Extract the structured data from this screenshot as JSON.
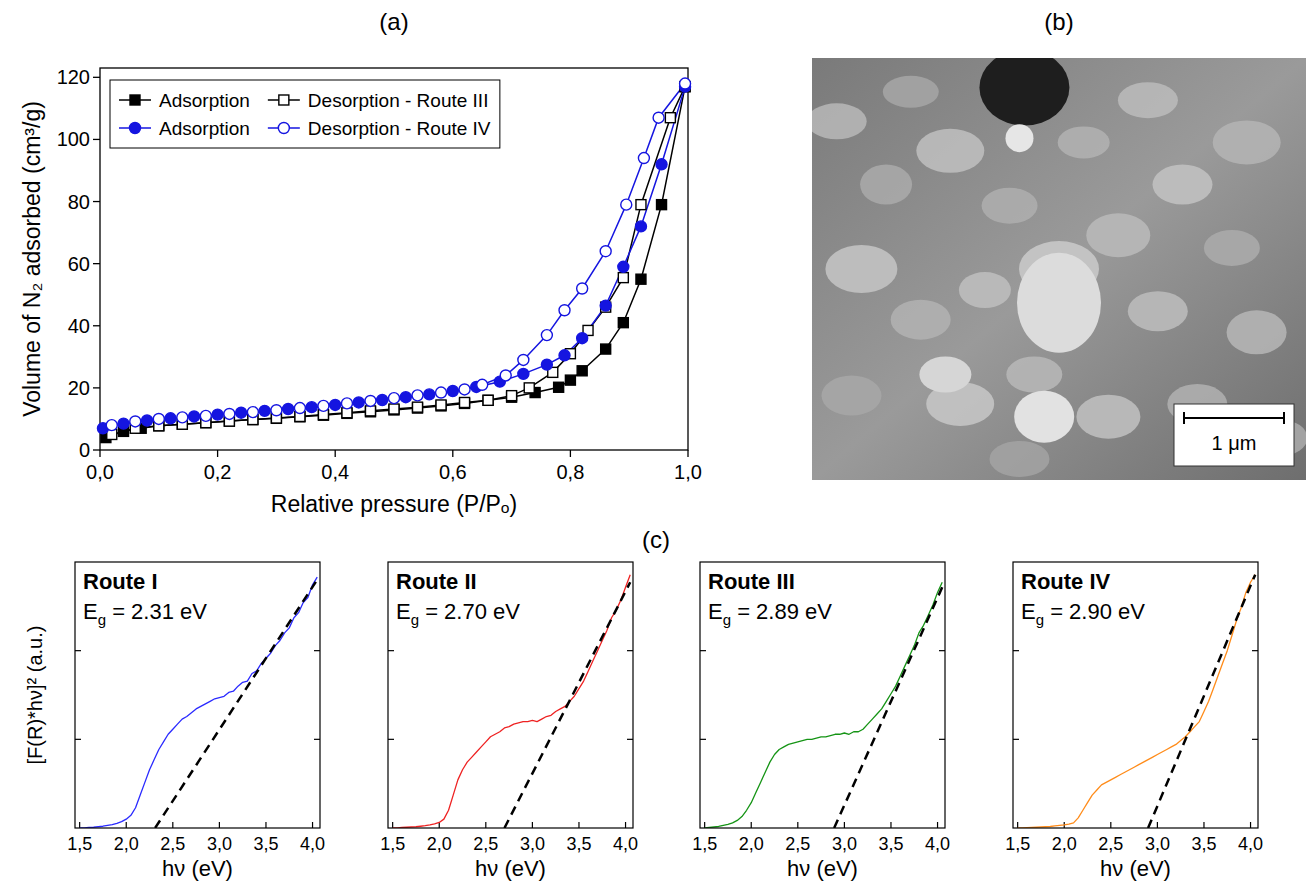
{
  "chart_data": [
    {
      "type": "line",
      "title": "(a)",
      "xlabel": "Relative pressure (P/Pₒ)",
      "ylabel": "Volume of N₂ adsorbed (cm³/g)",
      "xlim": [
        0,
        1
      ],
      "ylim": [
        0,
        123
      ],
      "xticks": [
        {
          "value": 0,
          "label": "0,0"
        },
        {
          "value": 0.2,
          "label": "0,2"
        },
        {
          "value": 0.4,
          "label": "0,4"
        },
        {
          "value": 0.6,
          "label": "0,6"
        },
        {
          "value": 0.8,
          "label": "0,8"
        },
        {
          "value": 1,
          "label": "1,0"
        }
      ],
      "yticks": [
        0,
        20,
        40,
        60,
        80,
        100,
        120
      ],
      "legend": "upper left",
      "series": [
        {
          "name": "Adsorption",
          "color": "#000000",
          "marker": "square",
          "x": [
            0.01,
            0.04,
            0.07,
            0.1,
            0.14,
            0.18,
            0.22,
            0.26,
            0.3,
            0.34,
            0.38,
            0.42,
            0.46,
            0.5,
            0.54,
            0.58,
            0.62,
            0.66,
            0.7,
            0.74,
            0.78,
            0.8,
            0.82,
            0.86,
            0.89,
            0.92,
            0.955,
            0.995
          ],
          "values": [
            4,
            6,
            7,
            7.8,
            8.3,
            8.8,
            9.3,
            9.8,
            10.2,
            10.7,
            11.2,
            11.8,
            12.3,
            12.9,
            13.5,
            14.2,
            15,
            16,
            17,
            18.5,
            20.2,
            22.5,
            25.5,
            32.5,
            41,
            55,
            79,
            117
          ]
        },
        {
          "name": "Desorption - Route III",
          "color": "#000000",
          "marker": "square-open",
          "x": [
            0.995,
            0.97,
            0.92,
            0.89,
            0.86,
            0.83,
            0.8,
            0.77,
            0.73,
            0.7,
            0.66,
            0.62,
            0.58,
            0.54,
            0.5,
            0.46,
            0.42,
            0.38,
            0.34,
            0.3,
            0.26,
            0.22,
            0.18,
            0.14,
            0.1,
            0.06,
            0.02
          ],
          "values": [
            117,
            107,
            79,
            55.5,
            46,
            38.5,
            31,
            25,
            20,
            17.5,
            16,
            15.3,
            14.5,
            13.8,
            13.2,
            12.6,
            12,
            11.4,
            10.8,
            10.3,
            9.8,
            9.3,
            8.8,
            8.3,
            7.8,
            7,
            5
          ]
        },
        {
          "name": "Adsorption",
          "color": "#1515e0",
          "marker": "circle",
          "x": [
            0.005,
            0.04,
            0.08,
            0.12,
            0.16,
            0.2,
            0.24,
            0.28,
            0.32,
            0.36,
            0.4,
            0.44,
            0.48,
            0.52,
            0.56,
            0.6,
            0.64,
            0.68,
            0.72,
            0.76,
            0.79,
            0.82,
            0.86,
            0.89,
            0.92,
            0.955,
            0.995
          ],
          "values": [
            7,
            8.5,
            9.5,
            10.2,
            10.8,
            11.4,
            12,
            12.6,
            13.2,
            13.8,
            14.5,
            15.3,
            16.1,
            17,
            17.9,
            19,
            20.3,
            22,
            24.5,
            27.5,
            30.5,
            36,
            46.5,
            59,
            72,
            92,
            117
          ]
        },
        {
          "name": "Desorption - Route IV",
          "color": "#1515e0",
          "marker": "circle-open",
          "x": [
            0.995,
            0.95,
            0.925,
            0.895,
            0.86,
            0.82,
            0.79,
            0.76,
            0.72,
            0.69,
            0.65,
            0.62,
            0.58,
            0.54,
            0.5,
            0.46,
            0.42,
            0.38,
            0.34,
            0.3,
            0.26,
            0.22,
            0.18,
            0.14,
            0.1,
            0.06,
            0.02
          ],
          "values": [
            118,
            107,
            94,
            79,
            64,
            52,
            45,
            37,
            29,
            24,
            21,
            19.5,
            18.5,
            17.6,
            16.7,
            15.8,
            15,
            14.2,
            13.5,
            12.8,
            12.2,
            11.6,
            11,
            10.5,
            10,
            9.2,
            8
          ]
        }
      ]
    },
    {
      "type": "line",
      "title": "Route I",
      "annotation": "Eg = 2.31 eV",
      "xlabel": "hν (eV)",
      "ylabel": "[F(R)*hν]² (a.u.)",
      "xlim": [
        1.45,
        4.08
      ],
      "ylim": [
        0,
        1.05
      ],
      "tick_labels": "x",
      "xticks": [
        {
          "value": 1.5,
          "label": "1,5"
        },
        {
          "value": 2,
          "label": "2,0"
        },
        {
          "value": 2.5,
          "label": "2,5"
        },
        {
          "value": 3,
          "label": "3,0"
        },
        {
          "value": 3.5,
          "label": "3,5"
        },
        {
          "value": 4,
          "label": "4,0"
        }
      ],
      "yticks": [
        0.35,
        0.7
      ],
      "color": "#2a2aff",
      "x": [
        1.5,
        1.55,
        1.6,
        1.65,
        1.7,
        1.75,
        1.8,
        1.85,
        1.9,
        1.95,
        2.0,
        2.05,
        2.1,
        2.15,
        2.2,
        2.25,
        2.3,
        2.35,
        2.4,
        2.45,
        2.5,
        2.55,
        2.6,
        2.65,
        2.7,
        2.75,
        2.8,
        2.85,
        2.9,
        2.95,
        3.0,
        3.05,
        3.1,
        3.15,
        3.2,
        3.25,
        3.3,
        3.35,
        3.4,
        3.45,
        3.5,
        3.55,
        3.6,
        3.65,
        3.7,
        3.75,
        3.8,
        3.85,
        3.9,
        3.95,
        4.0,
        4.05
      ],
      "values": [
        0,
        0,
        0.002,
        0.003,
        0.005,
        0.007,
        0.01,
        0.013,
        0.018,
        0.025,
        0.035,
        0.05,
        0.08,
        0.13,
        0.18,
        0.23,
        0.27,
        0.31,
        0.34,
        0.37,
        0.39,
        0.41,
        0.43,
        0.44,
        0.455,
        0.47,
        0.48,
        0.49,
        0.5,
        0.51,
        0.515,
        0.52,
        0.535,
        0.54,
        0.56,
        0.575,
        0.58,
        0.61,
        0.62,
        0.65,
        0.67,
        0.69,
        0.72,
        0.74,
        0.77,
        0.79,
        0.83,
        0.85,
        0.89,
        0.91,
        0.96,
        0.99
      ],
      "fit": {
        "x": [
          2.31,
          4.05
        ],
        "values": [
          0,
          0.98
        ]
      }
    },
    {
      "type": "line",
      "title": "Route II",
      "annotation": "Eg = 2.70 eV",
      "xlabel": "hν (eV)",
      "xlim": [
        1.45,
        4.08
      ],
      "ylim": [
        0,
        1.05
      ],
      "tick_labels": "x",
      "xticks": [
        {
          "value": 1.5,
          "label": "1,5"
        },
        {
          "value": 2,
          "label": "2,0"
        },
        {
          "value": 2.5,
          "label": "2,5"
        },
        {
          "value": 3,
          "label": "3,0"
        },
        {
          "value": 3.5,
          "label": "3,5"
        },
        {
          "value": 4,
          "label": "4,0"
        }
      ],
      "yticks": [
        0.35,
        0.7
      ],
      "color": "#ee2222",
      "x": [
        1.5,
        1.55,
        1.6,
        1.65,
        1.7,
        1.75,
        1.8,
        1.85,
        1.9,
        1.95,
        2.0,
        2.05,
        2.1,
        2.15,
        2.2,
        2.25,
        2.3,
        2.35,
        2.4,
        2.45,
        2.5,
        2.55,
        2.6,
        2.65,
        2.7,
        2.75,
        2.8,
        2.85,
        2.9,
        2.95,
        3.0,
        3.05,
        3.1,
        3.15,
        3.2,
        3.25,
        3.3,
        3.35,
        3.4,
        3.45,
        3.5,
        3.55,
        3.6,
        3.65,
        3.7,
        3.75,
        3.8,
        3.85,
        3.9,
        3.95,
        4.0,
        4.05
      ],
      "values": [
        0,
        0,
        0.002,
        0.003,
        0.004,
        0.005,
        0.007,
        0.009,
        0.012,
        0.016,
        0.022,
        0.035,
        0.07,
        0.13,
        0.19,
        0.23,
        0.26,
        0.28,
        0.3,
        0.32,
        0.34,
        0.36,
        0.37,
        0.38,
        0.395,
        0.4,
        0.41,
        0.415,
        0.42,
        0.42,
        0.425,
        0.42,
        0.43,
        0.44,
        0.445,
        0.46,
        0.47,
        0.48,
        0.5,
        0.52,
        0.55,
        0.58,
        0.62,
        0.66,
        0.7,
        0.74,
        0.78,
        0.83,
        0.86,
        0.9,
        0.95,
        1.0
      ],
      "fit": {
        "x": [
          2.7,
          4.05
        ],
        "values": [
          0,
          0.97
        ]
      }
    },
    {
      "type": "line",
      "title": "Route III",
      "annotation": "Eg = 2.89 eV",
      "xlabel": "hν (eV)",
      "xlim": [
        1.45,
        4.08
      ],
      "ylim": [
        0,
        1.05
      ],
      "tick_labels": "x",
      "xticks": [
        {
          "value": 1.5,
          "label": "1,5"
        },
        {
          "value": 2,
          "label": "2,0"
        },
        {
          "value": 2.5,
          "label": "2,5"
        },
        {
          "value": 3,
          "label": "3,0"
        },
        {
          "value": 3.5,
          "label": "3,5"
        },
        {
          "value": 4,
          "label": "4,0"
        }
      ],
      "yticks": [
        0.35,
        0.7
      ],
      "color": "#159415",
      "x": [
        1.5,
        1.55,
        1.6,
        1.65,
        1.7,
        1.75,
        1.8,
        1.85,
        1.9,
        1.95,
        2.0,
        2.05,
        2.1,
        2.15,
        2.2,
        2.25,
        2.3,
        2.35,
        2.4,
        2.45,
        2.5,
        2.55,
        2.6,
        2.65,
        2.7,
        2.75,
        2.8,
        2.85,
        2.9,
        2.95,
        3.0,
        3.05,
        3.1,
        3.15,
        3.2,
        3.25,
        3.3,
        3.35,
        3.4,
        3.45,
        3.5,
        3.55,
        3.6,
        3.65,
        3.7,
        3.75,
        3.8,
        3.85,
        3.9,
        3.95,
        4.0,
        4.05
      ],
      "values": [
        0,
        0.002,
        0.004,
        0.006,
        0.01,
        0.014,
        0.02,
        0.03,
        0.045,
        0.07,
        0.1,
        0.14,
        0.18,
        0.22,
        0.26,
        0.29,
        0.31,
        0.32,
        0.33,
        0.335,
        0.34,
        0.345,
        0.35,
        0.35,
        0.355,
        0.36,
        0.36,
        0.365,
        0.37,
        0.37,
        0.375,
        0.37,
        0.38,
        0.38,
        0.39,
        0.41,
        0.43,
        0.45,
        0.47,
        0.5,
        0.53,
        0.56,
        0.6,
        0.64,
        0.68,
        0.72,
        0.77,
        0.8,
        0.84,
        0.88,
        0.93,
        0.97
      ],
      "fit": {
        "x": [
          2.89,
          4.05
        ],
        "values": [
          0,
          0.95
        ]
      }
    },
    {
      "type": "line",
      "title": "Route IV",
      "annotation": "Eg = 2.90 eV",
      "xlabel": "hν (eV)",
      "xlim": [
        1.45,
        4.08
      ],
      "ylim": [
        0,
        1.05
      ],
      "tick_labels": "x",
      "xticks": [
        {
          "value": 1.5,
          "label": "1,5"
        },
        {
          "value": 2,
          "label": "2,0"
        },
        {
          "value": 2.5,
          "label": "2,5"
        },
        {
          "value": 3,
          "label": "3,0"
        },
        {
          "value": 3.5,
          "label": "3,5"
        },
        {
          "value": 4,
          "label": "4,0"
        }
      ],
      "yticks": [
        0.35,
        0.7
      ],
      "color": "#ff8c1a",
      "x": [
        1.5,
        1.55,
        1.6,
        1.65,
        1.7,
        1.75,
        1.8,
        1.85,
        1.9,
        1.95,
        2.0,
        2.05,
        2.1,
        2.15,
        2.2,
        2.25,
        2.3,
        2.35,
        2.4,
        2.45,
        2.5,
        2.55,
        2.6,
        2.65,
        2.7,
        2.75,
        2.8,
        2.85,
        2.9,
        2.95,
        3.0,
        3.05,
        3.1,
        3.15,
        3.2,
        3.25,
        3.3,
        3.35,
        3.4,
        3.45,
        3.5,
        3.55,
        3.6,
        3.65,
        3.7,
        3.75,
        3.8,
        3.85,
        3.9,
        3.95,
        4.0,
        4.05
      ],
      "values": [
        0,
        0,
        0.001,
        0.002,
        0.003,
        0.004,
        0.005,
        0.006,
        0.008,
        0.01,
        0.012,
        0.015,
        0.02,
        0.04,
        0.07,
        0.1,
        0.13,
        0.15,
        0.17,
        0.18,
        0.19,
        0.2,
        0.21,
        0.22,
        0.23,
        0.24,
        0.25,
        0.26,
        0.27,
        0.28,
        0.29,
        0.3,
        0.31,
        0.32,
        0.33,
        0.345,
        0.36,
        0.38,
        0.4,
        0.42,
        0.46,
        0.5,
        0.55,
        0.6,
        0.65,
        0.7,
        0.76,
        0.82,
        0.87,
        0.93,
        0.97,
        1.0
      ],
      "fit": {
        "x": [
          2.9,
          4.05
        ],
        "values": [
          0,
          1.0
        ]
      }
    }
  ],
  "image": {
    "title": "(b)",
    "scale_bar": "1 μm"
  },
  "panel_c_label": "(c)"
}
